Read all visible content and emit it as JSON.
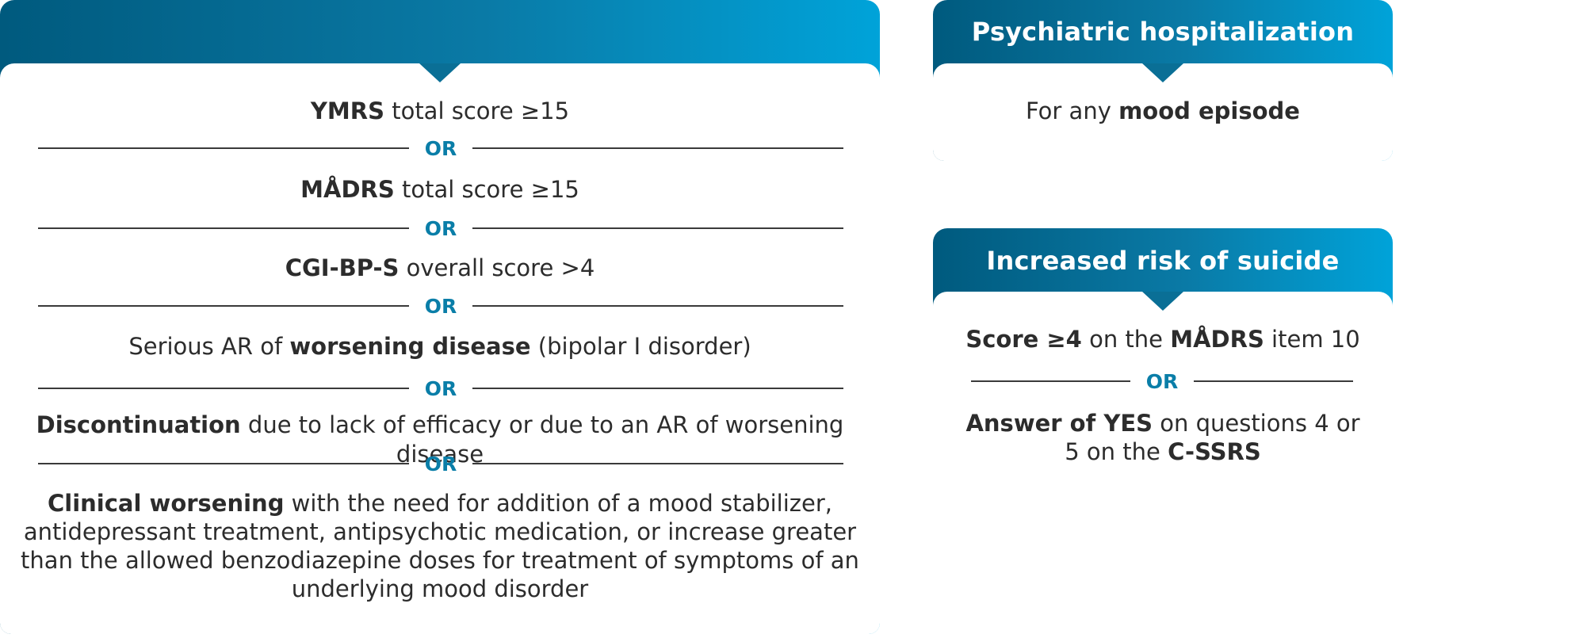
{
  "colors": {
    "header_gradient_start": "#005a7e",
    "header_gradient_end": "#00a3d9",
    "or_text": "#0a7ea8",
    "body_text": "#2c2c2c"
  },
  "left_panel": {
    "title": "",
    "criteria": [
      {
        "bold": "YMRS",
        "rest": " total score ≥15"
      },
      {
        "bold": "MÅDRS",
        "rest": " total score ≥15"
      },
      {
        "bold": "CGI-BP-S",
        "rest": " overall score >4"
      },
      {
        "pre": "Serious AR of ",
        "bold": "worsening disease",
        "rest": " (bipolar I disorder)"
      },
      {
        "bold": "Discontinuation",
        "rest": " due to lack of efficacy or due to an AR of worsening disease"
      },
      {
        "bold": "Clinical worsening",
        "rest": " with the need for addition of a mood stabilizer,",
        "lines": [
          "antidepressant treatment, antipsychotic medication, or increase greater",
          "than the allowed benzodiazepine doses for treatment of symptoms of an",
          "underlying mood disorder"
        ]
      }
    ],
    "separator": "OR"
  },
  "right_top_panel": {
    "title": "Psychiatric hospitalization",
    "text_pre": "For any ",
    "text_bold": "mood episode"
  },
  "right_bottom_panel": {
    "title": "Increased risk of suicide",
    "line1_bold_a": "Score ≥4",
    "line1_mid": " on the ",
    "line1_bold_b": "MÅDRS",
    "line1_rest": " item 10",
    "separator": "OR",
    "line2_bold": "Answer of YES",
    "line2_rest": " on questions 4 or",
    "line3_pre": "5 on the ",
    "line3_bold": "C-SSRS"
  }
}
